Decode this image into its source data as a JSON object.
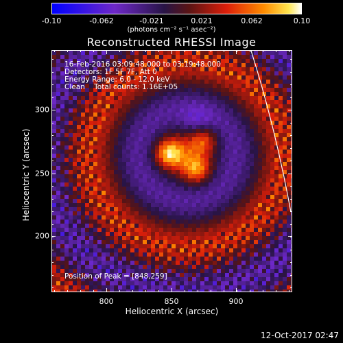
{
  "colorbar": {
    "tick_labels": [
      "-0.10",
      "-0.062",
      "-0.021",
      "0.021",
      "0.062",
      "0.10"
    ],
    "unit_label": "(photons cm⁻² s⁻¹ asec⁻²)"
  },
  "plot": {
    "title": "Reconstructed RHESSI Image",
    "annotations": {
      "time": "16-Feb-2016 03:09:48.000 to 03:19:48.000",
      "detectors": "Detectors: 1F 5F 7F, Att 0",
      "energy": "Energy Range: 6.0 - 12.0 keV",
      "clean": "Clean    Total counts: 1.16E+05",
      "peak": "Position of Peak = [848,259]"
    },
    "x_axis": {
      "label": "Heliocentric X (arcsec)",
      "tick_labels": [
        "800",
        "850",
        "900"
      ]
    },
    "y_axis": {
      "label": "Heliocentric Y (arcsec)",
      "tick_labels": [
        "300",
        "250",
        "200"
      ]
    }
  },
  "footer": {
    "timestamp": "12-Oct-2017 02:47"
  },
  "chart_data": {
    "type": "heatmap",
    "title": "Reconstructed RHESSI Image",
    "xlabel": "Heliocentric X (arcsec)",
    "ylabel": "Heliocentric Y (arcsec)",
    "xlim": [
      757,
      945
    ],
    "ylim": [
      150,
      339
    ],
    "colorbar_range": [
      -0.1,
      0.1
    ],
    "colormap": "blue-purple-red-yellow-white",
    "peak": [
      848,
      259
    ],
    "sources": [
      {
        "x": 848,
        "y": 259,
        "value": 0.1
      },
      {
        "x": 870,
        "y": 246,
        "value": 0.08
      },
      {
        "x": 875,
        "y": 270,
        "value": 0.07
      }
    ]
  }
}
